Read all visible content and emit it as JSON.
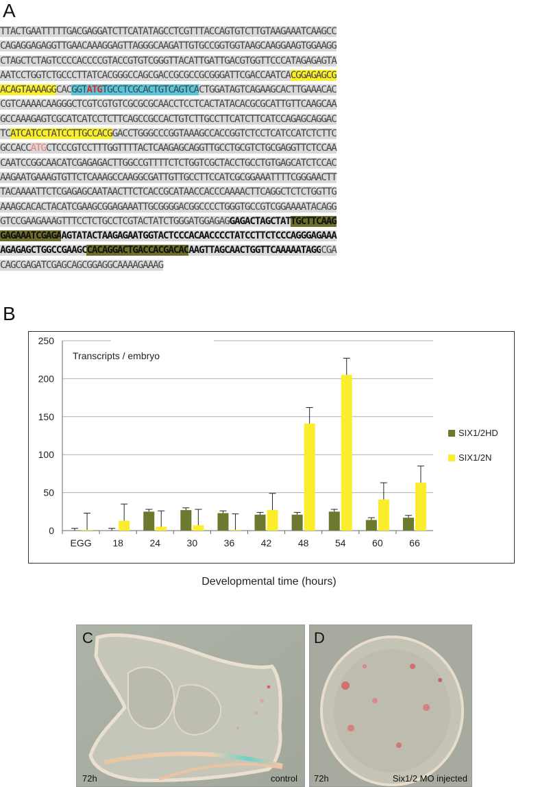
{
  "panel_a": {
    "label": "A",
    "lines": [
      [
        {
          "t": "TTACTGAATTTTTGACGAGGATCTTCATATAGCCTCGTTTACCAGTGTCTTGTAAGAAATCAAGCC",
          "s": "plain"
        }
      ],
      [
        {
          "t": "CAGAGGAGAGGTTGAACAAAGGAGTTAGGGCAAGATTGTGCCGGTGGTAAGCAAGGAAGTGGAAGG",
          "s": "plain"
        }
      ],
      [
        {
          "t": "CTAGCTCTAGTCCCCACCCCGTACCGTGTCGGGTTACATTGATTGACGTGGTTCCCATAGAGAGTA",
          "s": "plain"
        }
      ],
      [
        {
          "t": "AATCCTGGTCTGCCCTTATCACGGGCCAGCGACCGCGCCGCGGGATTCGACCAATCA",
          "s": "plain"
        },
        {
          "t": "CGGAGAGCG",
          "s": "hl-yellow"
        }
      ],
      [
        {
          "t": "ACAGTAAAAGG",
          "s": "hl-yellow"
        },
        {
          "t": "CAC",
          "s": "plain"
        },
        {
          "t": "GGT",
          "s": "hl-blue"
        },
        {
          "t": "ATG",
          "s": "hl-blue red"
        },
        {
          "t": "TGCCTCGCACTGTCAGTCA",
          "s": "hl-blue"
        },
        {
          "t": "CTGGATAGTCAGAAGCACTTGAAACAC",
          "s": "plain"
        }
      ],
      [
        {
          "t": "CGTCAAAACAAGGGCTCGTCGTGTCGCGCGCAACCTCCTCACTATACACGCGCATTGTTCAAGCAA",
          "s": "plain"
        }
      ],
      [
        {
          "t": "GCCAAAGAGTCGCATCATCCTCTTCAGCCGCCACTGTCTTGCCTTCATCTTCATCCAGAGCAGGAC",
          "s": "plain"
        }
      ],
      [
        {
          "t": "TC",
          "s": "plain"
        },
        {
          "t": "ATCATCCTATCCTTGCCACG",
          "s": "hl-yellow"
        },
        {
          "t": "GACCTGGGCCCGGTAAAGCCACCGGTCTCCTCATCCATCTCTTC",
          "s": "plain"
        }
      ],
      [
        {
          "t": "GCCACC",
          "s": "plain"
        },
        {
          "t": "ATG",
          "s": "pink"
        },
        {
          "t": "CTCCCGTCCTTTGGTTTTACTCAAGAGCAGGTTGCCTGCGTCTGCGAGGTTCTCCAA",
          "s": "plain"
        }
      ],
      [
        {
          "t": "CAATCCGGCAACATCGAGAGACTTGGCCGTTTTCTCTGGTCGCTACCTGCCTGTGAGCATCTCCAC",
          "s": "plain"
        }
      ],
      [
        {
          "t": "AAGAATGAAAGTGTTCTCAAAGCCAAGGCGATTGTTGCCTTCCATCGCGGAAATTTTCGGGAACTT",
          "s": "plain"
        }
      ],
      [
        {
          "t": "TACAAAATTCTCGAGAGCAATAACTTCTCACCGCATAACCACCCAAAACTTCAGGCTCTCTGGTTG",
          "s": "plain"
        }
      ],
      [
        {
          "t": "AAAGCACACTACATCGAAGCGGAGAAATTGCGGGGACGGCCCCTGGGTGCCGTCGGAAAATACAGG",
          "s": "plain"
        }
      ],
      [
        {
          "t": "GTCCGAAGAAAGTTTCCTCTGCCTCGTACTATCTGGGATGGAGAG",
          "s": "plain"
        },
        {
          "t": "GAGACTAGCTAT",
          "s": "bold"
        },
        {
          "t": "TGCTTCAAG",
          "s": "hl-olive"
        }
      ],
      [
        {
          "t": "GAGAAATCGAGA",
          "s": "hl-olive"
        },
        {
          "t": "AGTATACTAAGAGAATGGTACTCCCACAACCCCTATCCTTCTCCCAGGGAGAAA",
          "s": "bold"
        }
      ],
      [
        {
          "t": "AGAGAGCTGGCCGAAGC",
          "s": "bold"
        },
        {
          "t": "CACAGGACTGACCACGACAC",
          "s": "hl-olive"
        },
        {
          "t": "AAGTTAGCAACTGGTTCAAAAATAGG",
          "s": "bold"
        },
        {
          "t": "CGA",
          "s": "plain"
        }
      ],
      [
        {
          "t": "CAGCGAGATCGAGCAGCGGAGGCAAAAGAAAG",
          "s": "plain"
        }
      ]
    ]
  },
  "panel_b": {
    "label": "B",
    "chart_data": {
      "type": "bar",
      "annotation": "Transcripts / embryo",
      "xlabel": "Developmental time (hours)",
      "ylabel": "",
      "ylim": [
        0,
        250
      ],
      "yticks": [
        0,
        50,
        100,
        150,
        200,
        250
      ],
      "grid": true,
      "legend_position": "right",
      "categories": [
        "EGG",
        "18",
        "24",
        "30",
        "36",
        "42",
        "48",
        "54",
        "60",
        "66"
      ],
      "series": [
        {
          "name": "SIX1/2HD",
          "color": "#6b7a2e",
          "values": [
            0,
            0,
            25,
            27,
            23,
            21,
            21,
            25,
            14,
            17
          ],
          "errors": [
            3,
            3,
            3,
            3,
            3,
            3,
            3,
            3,
            3,
            3
          ]
        },
        {
          "name": "SIX1/2N",
          "color": "#fbec2c",
          "values": [
            1,
            13,
            5,
            7,
            1,
            27,
            141,
            205,
            41,
            63
          ],
          "errors": [
            22,
            22,
            21,
            21,
            21,
            22,
            21,
            22,
            22,
            22
          ]
        }
      ]
    }
  },
  "panel_c": {
    "label": "C",
    "time": "72h",
    "caption": "control"
  },
  "panel_d": {
    "label": "D",
    "time": "72h",
    "caption": "Six1/2 MO injected"
  }
}
